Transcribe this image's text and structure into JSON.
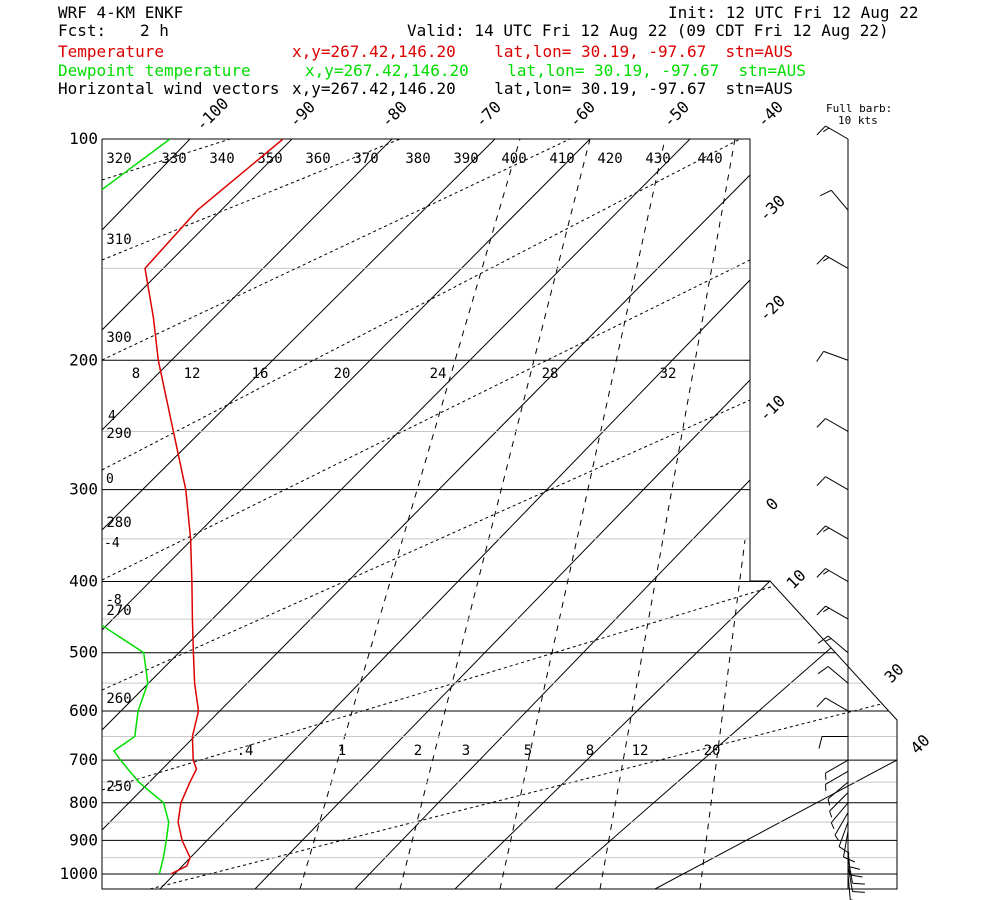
{
  "header": {
    "model": "WRF 4-KM ENKF",
    "fcst_label": "Fcst:",
    "fcst_value": "2 h",
    "init": "Init: 12 UTC Fri 12 Aug 22",
    "valid": "Valid: 14 UTC Fri 12 Aug 22 (09 CDT Fri 12 Aug 22)",
    "full_barb_line1": "Full barb:",
    "full_barb_line2": "10 kts"
  },
  "series": [
    {
      "name": "Temperature",
      "color": "#dd0000",
      "info": "x,y=267.42,146.20    lat,lon= 30.19, -97.67  stn=AUS"
    },
    {
      "name": "Dewpoint temperature",
      "color": "#00dd00",
      "info": "x,y=267.42,146.20    lat,lon= 30.19, -97.67  stn=AUS"
    },
    {
      "name": "Horizontal wind vectors",
      "color": "#000000",
      "info": "x,y=267.42,146.20    lat,lon= 30.19, -97.67  stn=AUS"
    }
  ],
  "chart_data": {
    "type": "line",
    "diagram": "skew-T log-p",
    "pressure_labels": [
      "100",
      "200",
      "300",
      "400",
      "500",
      "600",
      "700",
      "800",
      "900",
      "1000"
    ],
    "pressure_levels": [
      100,
      200,
      300,
      400,
      500,
      600,
      700,
      800,
      900,
      1000
    ],
    "ylim": [
      1000,
      100
    ],
    "isotherm_labels": [
      "-100",
      "-90",
      "-80",
      "-70",
      "-60",
      "-50",
      "-40",
      "-30",
      "-20",
      "-10",
      "0",
      "10",
      "30",
      "40"
    ],
    "theta_e_labels": [
      "320",
      "330",
      "340",
      "350",
      "360",
      "370",
      "380",
      "390",
      "400",
      "410",
      "420",
      "430",
      "440"
    ],
    "theta_labels": [
      "310",
      "300",
      "290",
      "280",
      "270",
      "260",
      "250"
    ],
    "mixing_ratio_labels_upper": [
      "8",
      "12",
      "16",
      "20",
      "24",
      "28",
      "32"
    ],
    "mixing_ratio_labels_lower": [
      ".4",
      "1",
      "2",
      "3",
      "5",
      "8",
      "12",
      "20"
    ],
    "left_misc_labels": [
      "4",
      "0",
      "-4",
      "-8"
    ],
    "temperature": {
      "pressure": [
        1000,
        975,
        950,
        900,
        850,
        800,
        750,
        720,
        700,
        650,
        600,
        550,
        500,
        450,
        400,
        350,
        300,
        250,
        200,
        175,
        150,
        125,
        100
      ],
      "temp_c": [
        23.7,
        24.8,
        24.1,
        20.6,
        17.5,
        15.2,
        13.6,
        12.7,
        11.0,
        7.6,
        4.9,
        0.5,
        -3.9,
        -8.7,
        -14.0,
        -20.1,
        -27.6,
        -37.4,
        -49.4,
        -56.0,
        -64.0,
        -64.8,
        -62.8
      ]
    },
    "dewpoint": {
      "pressure": [
        1000,
        950,
        900,
        850,
        800,
        750,
        700,
        680,
        650,
        600,
        550,
        500,
        450,
        400,
        350,
        300,
        250,
        200,
        150,
        125,
        100
      ],
      "dewpoint_c": [
        22.1,
        20.4,
        18.4,
        16.2,
        12.8,
        6.5,
        0.9,
        -1.3,
        -0.4,
        -3.5,
        -6.0,
        -10.8,
        -22.6,
        -40.9,
        -49.4,
        -55.7,
        -62.0,
        -68.5,
        -84.3,
        -81.9,
        -78.5
      ]
    },
    "wind": {
      "pressure": [
        1000,
        975,
        950,
        925,
        900,
        875,
        850,
        825,
        800,
        775,
        750,
        725,
        700,
        650,
        600,
        550,
        500,
        450,
        400,
        350,
        300,
        250,
        200,
        150,
        125,
        100
      ],
      "speed_kt": [
        8,
        10,
        10,
        10,
        9,
        8,
        8,
        7,
        6,
        6,
        5,
        5,
        6,
        8,
        10,
        12,
        15,
        15,
        15,
        15,
        12,
        10,
        10,
        15,
        10,
        15
      ],
      "direction_deg": [
        175,
        170,
        170,
        175,
        180,
        190,
        200,
        210,
        220,
        225,
        230,
        240,
        240,
        270,
        300,
        310,
        310,
        300,
        300,
        300,
        300,
        300,
        290,
        300,
        320,
        300
      ]
    }
  }
}
